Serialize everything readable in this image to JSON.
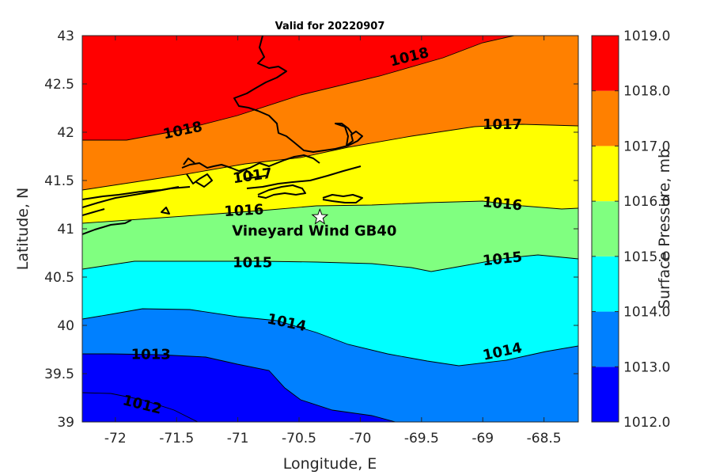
{
  "title": "Valid for 20220907",
  "xlabel": "Longitude, E",
  "ylabel": "Latitude, N",
  "colorbar_label": "Surface Pressure, mb",
  "x_ticks": [
    "-72",
    "-71.5",
    "-71",
    "-70.5",
    "-70",
    "-69.5",
    "-69",
    "-68.5"
  ],
  "y_ticks": [
    "39",
    "39.5",
    "40",
    "40.5",
    "41",
    "41.5",
    "42",
    "42.5",
    "43"
  ],
  "colorbar_ticks": [
    "1012.0",
    "1013.0",
    "1014.0",
    "1015.0",
    "1016.0",
    "1017.0",
    "1018.0",
    "1019.0"
  ],
  "site_label": "Vineyard Wind GB40",
  "chart_data": {
    "type": "contour-map",
    "variable": "Surface Pressure, mb",
    "xlim": [
      -72.27,
      -68.22
    ],
    "ylim": [
      39,
      43
    ],
    "levels": [
      1012,
      1013,
      1014,
      1015,
      1016,
      1017,
      1018,
      1019
    ],
    "band_colors": [
      "#0000ff",
      "#0080ff",
      "#00ffff",
      "#80ff80",
      "#ffff00",
      "#ff8000",
      "#ff0000"
    ],
    "contour_labels": [
      {
        "text": "1018",
        "lon": -69.6,
        "lat": 42.78
      },
      {
        "text": "1018",
        "lon": -71.45,
        "lat": 42.02
      },
      {
        "text": "1017",
        "lon": -70.88,
        "lat": 41.55
      },
      {
        "text": "1017",
        "lon": -68.84,
        "lat": 42.08
      },
      {
        "text": "1016",
        "lon": -70.95,
        "lat": 41.19
      },
      {
        "text": "1016",
        "lon": -68.84,
        "lat": 41.26
      },
      {
        "text": "1015",
        "lon": -70.88,
        "lat": 40.65
      },
      {
        "text": "1015",
        "lon": -68.84,
        "lat": 40.69
      },
      {
        "text": "1014",
        "lon": -70.6,
        "lat": 40.03
      },
      {
        "text": "1014",
        "lon": -68.84,
        "lat": 39.73
      },
      {
        "text": "1013",
        "lon": -71.71,
        "lat": 39.7
      },
      {
        "text": "1012",
        "lon": -71.78,
        "lat": 39.18
      }
    ],
    "site": {
      "name": "Vineyard Wind GB40",
      "lon": -70.33,
      "lat": 41.12
    }
  }
}
